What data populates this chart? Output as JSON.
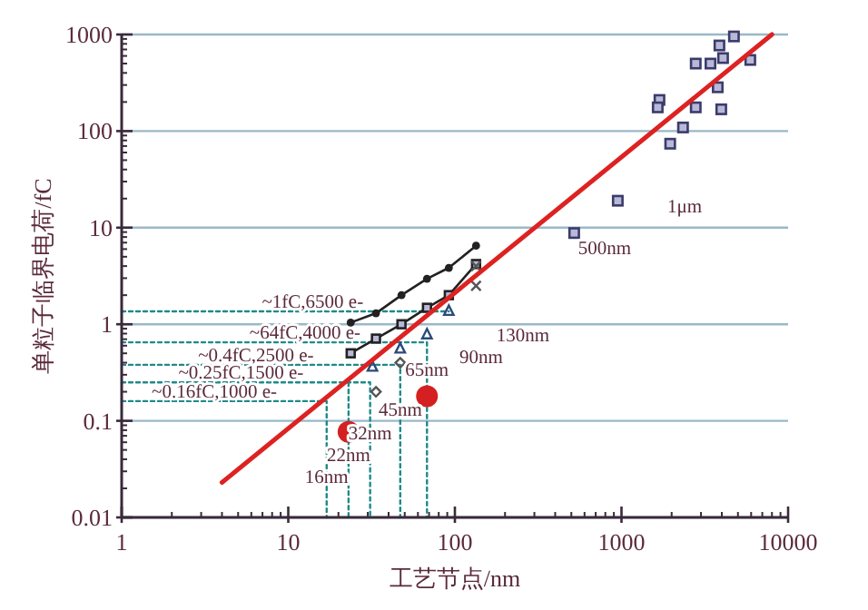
{
  "chart_data": {
    "type": "scatter",
    "xlabel": "工艺节点/nm",
    "ylabel": "单粒子临界电荷/fC",
    "log": "xy",
    "grid": "y",
    "xlim": [
      1,
      10000
    ],
    "ylim": [
      0.01,
      1000
    ],
    "xticks": [
      1,
      10,
      100,
      1000,
      10000
    ],
    "yticks": [
      0.01,
      0.1,
      1,
      10,
      100,
      1000
    ],
    "series": [
      {
        "type": "line",
        "color": "#1f8a8a",
        "line_style": "dotted",
        "x": [
          1,
          92
        ],
        "values": [
          1.36,
          1.36
        ]
      },
      {
        "type": "line",
        "color": "#1f8a8a",
        "line_style": "dotted",
        "x": [
          1,
          68,
          68
        ],
        "values": [
          0.65,
          0.65,
          0.01
        ]
      },
      {
        "type": "line",
        "color": "#1f8a8a",
        "line_style": "dotted",
        "x": [
          1,
          47,
          47
        ],
        "values": [
          0.38,
          0.38,
          0.01
        ]
      },
      {
        "type": "line",
        "color": "#1f8a8a",
        "line_style": "dotted",
        "x": [
          1,
          31,
          31
        ],
        "values": [
          0.25,
          0.25,
          0.01
        ]
      },
      {
        "type": "line",
        "color": "#1f8a8a",
        "line_style": "dotted",
        "x": [
          1,
          17,
          17
        ],
        "values": [
          0.16,
          0.16,
          0.01
        ]
      },
      {
        "type": "line",
        "color": "#1f8a8a",
        "line_style": "dotted",
        "x": [
          23,
          23
        ],
        "values": [
          0.25,
          0.01
        ]
      },
      {
        "type": "line",
        "color": "#222222",
        "marker": "circle",
        "line_style": "solid",
        "x": [
          23.7,
          33.6,
          47.8,
          68,
          92,
          134
        ],
        "values": [
          1.04,
          1.3,
          2.0,
          2.96,
          3.84,
          6.5
        ]
      },
      {
        "type": "line",
        "color": "#222222",
        "marker": "square",
        "line_style": "solid",
        "x": [
          23.7,
          33.6,
          47.8,
          68,
          92,
          134
        ],
        "values": [
          0.5,
          0.71,
          1.0,
          1.48,
          2.0,
          4.2
        ]
      },
      {
        "type": "scatter",
        "color": "#2a4a7a",
        "marker": "triangle",
        "x": [
          32,
          47,
          68,
          92
        ],
        "values": [
          0.37,
          0.57,
          0.8,
          1.4
        ]
      },
      {
        "type": "scatter",
        "color": "#555555",
        "marker": "diamond",
        "x": [
          33.6,
          47
        ],
        "values": [
          0.2,
          0.4
        ]
      },
      {
        "type": "scatter",
        "color": "#555555",
        "marker": "cross",
        "x": [
          134,
          134
        ],
        "values": [
          4.0,
          2.5
        ]
      },
      {
        "type": "bubble",
        "color": "#d42020",
        "x": [
          23,
          68
        ],
        "values": [
          0.077,
          0.18
        ],
        "sizes": [
          1,
          1
        ]
      },
      {
        "type": "scatter",
        "color": "#3b3b6b",
        "marker": "square",
        "x": [
          4730,
          3870,
          4070,
          2790,
          3420,
          5930,
          3780,
          1690,
          1650,
          2790,
          3970,
          2340,
          1960,
          950,
          520
        ],
        "values": [
          955,
          770,
          570,
          500,
          500,
          545,
          284,
          210,
          176,
          176,
          168,
          109,
          74,
          19,
          8.8
        ]
      },
      {
        "type": "line",
        "color": "#dd2222",
        "line_style": "solid",
        "x": [
          4,
          8000
        ],
        "values": [
          0.023,
          1000
        ]
      }
    ],
    "annotations": [
      {
        "text": "~1fC,6500 e-",
        "x": 14,
        "y": 1.36
      },
      {
        "text": "~64fC,4000 e-",
        "x": 12.6,
        "y": 0.65
      },
      {
        "text": "~0.4fC,2500 e-",
        "x": 6.4,
        "y": 0.38
      },
      {
        "text": "~0.25fC,1500 e-",
        "x": 5.2,
        "y": 0.25
      },
      {
        "text": "~0.16fC,1000 e-",
        "x": 3.6,
        "y": 0.16
      },
      {
        "text": "16nm",
        "x": 17,
        "y": 0.021
      },
      {
        "text": "22nm",
        "x": 23,
        "y": 0.035
      },
      {
        "text": "32nm",
        "x": 31,
        "y": 0.059
      },
      {
        "text": "45nm",
        "x": 47,
        "y": 0.104
      },
      {
        "text": "65nm",
        "x": 68,
        "y": 0.27
      },
      "90nm",
      "130nm",
      "500nm",
      "1μm"
    ]
  }
}
